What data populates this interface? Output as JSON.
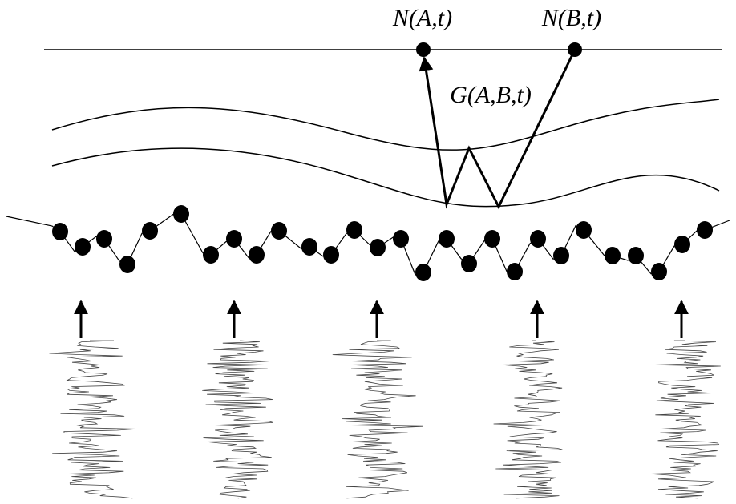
{
  "labels": {
    "station_a": "N(A,t)",
    "station_b": "N(B,t)",
    "green_function": "G(A,B,t)"
  }
}
